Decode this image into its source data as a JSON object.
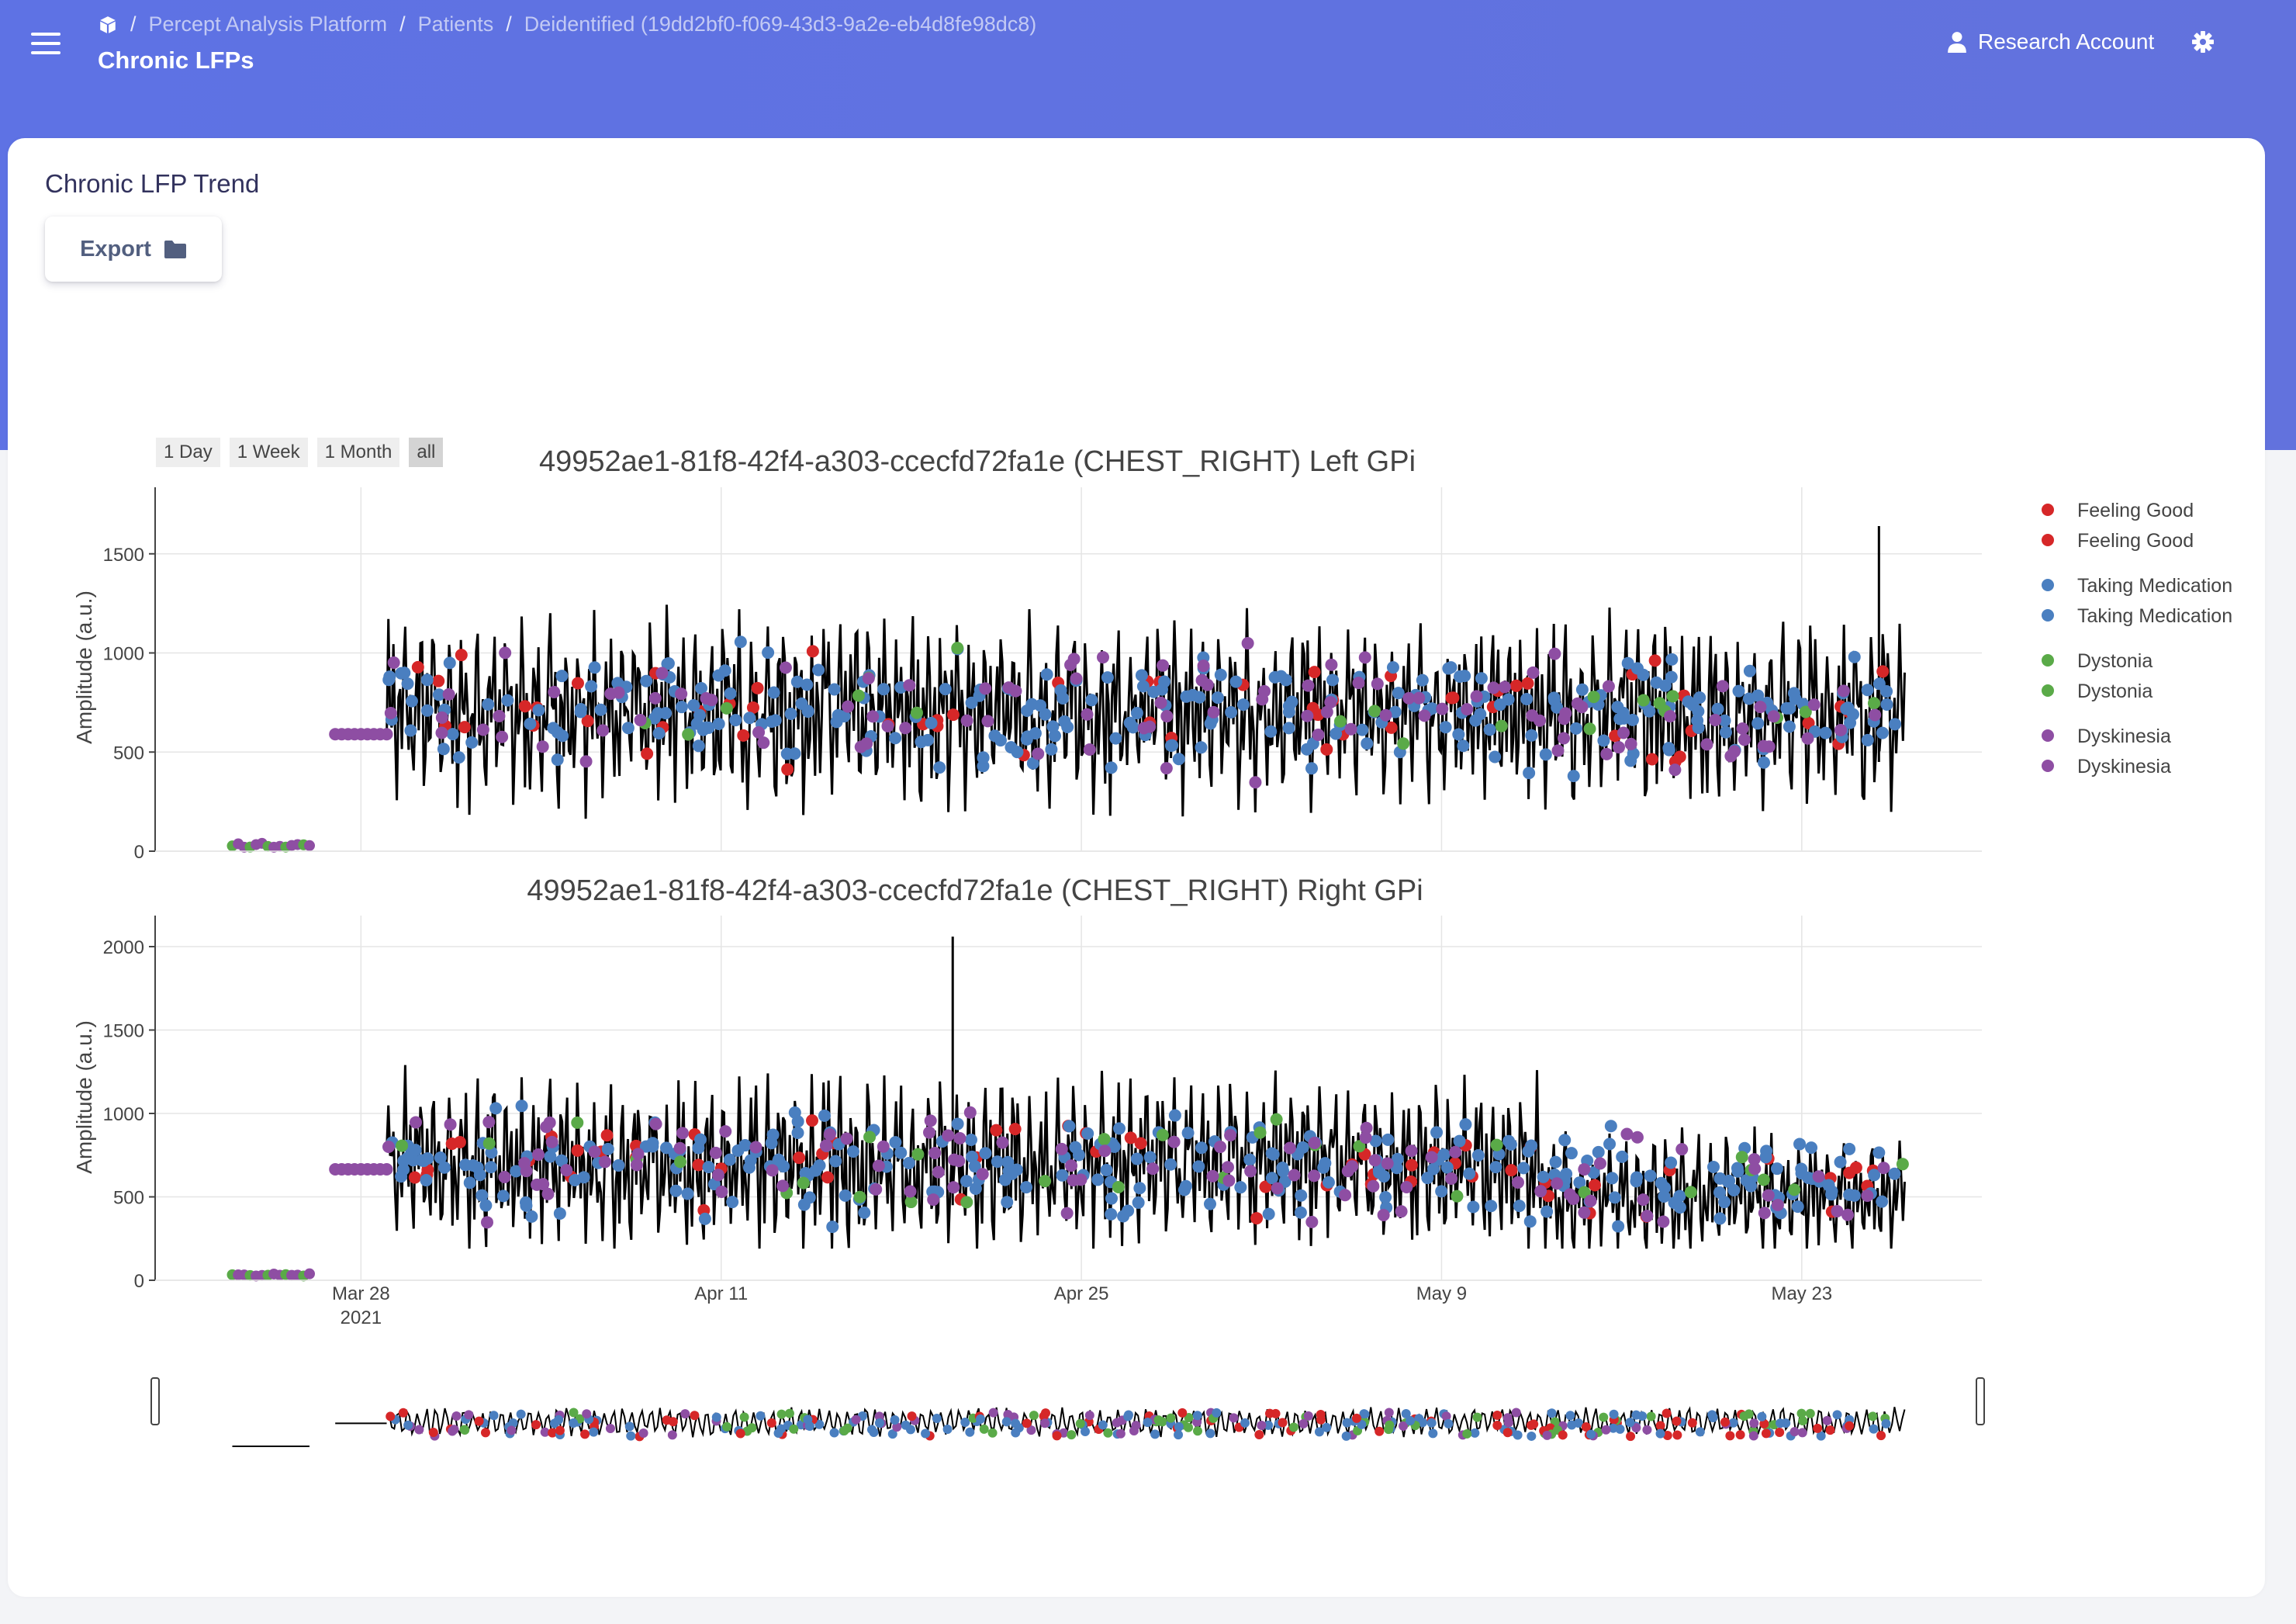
{
  "header": {
    "breadcrumb": [
      "Percept Analysis Platform",
      "Patients",
      "Deidentified (19dd2bf0-f069-43d3-9a2e-eb4d8fe98dc8)"
    ],
    "title": "Chronic LFPs",
    "account_label": "Research Account"
  },
  "card": {
    "title": "Chronic LFP Trend",
    "export_label": "Export"
  },
  "range_selector": {
    "buttons": [
      "1 Day",
      "1 Week",
      "1 Month",
      "all"
    ],
    "active": "all"
  },
  "colors": {
    "header_bg": "#5e72e4",
    "feeling_good": "#d62728",
    "taking_medication": "#4a7fc0",
    "dystonia": "#5aaa48",
    "dyskinesia": "#8e4ea3",
    "trace": "#000000"
  },
  "chart_data": [
    {
      "type": "line",
      "title": "49952ae1-81f8-42f4-a303-ccecfd72fa1e (CHEST_RIGHT) Left GPi",
      "ylabel": "Amplitude (a.u.)",
      "ylim": [
        0,
        1830
      ],
      "yticks": [
        0,
        500,
        1000,
        1500
      ],
      "xlim": [
        "2021-03-20",
        "2021-05-30"
      ],
      "grid": true,
      "legend_position": "right",
      "legend": [
        [
          "Feeling Good",
          "Feeling Good"
        ],
        [
          "Taking Medication",
          "Taking Medication"
        ],
        [
          "Dystonia",
          "Dystonia"
        ],
        [
          "Dyskinesia",
          "Dyskinesia"
        ]
      ],
      "segments": [
        {
          "start": "2021-03-23",
          "end": "2021-03-26",
          "level": 20
        },
        {
          "start": "2021-03-27",
          "end": "2021-03-29",
          "level": 590
        },
        {
          "start": "2021-03-29",
          "end": "2021-05-27",
          "level": 700,
          "low": 200,
          "high": 1200
        }
      ],
      "peak": {
        "x": "2021-05-26",
        "y": 1640
      },
      "events": {
        "Feeling Good": 60,
        "Taking Medication": 280,
        "Dystonia": 20,
        "Dyskinesia": 110
      }
    },
    {
      "type": "line",
      "title": "49952ae1-81f8-42f4-a303-ccecfd72fa1e (CHEST_RIGHT) Right GPi",
      "ylabel": "Amplitude (a.u.)",
      "ylim": [
        0,
        2170
      ],
      "yticks": [
        0,
        500,
        1000,
        1500,
        2000
      ],
      "xlim": [
        "2021-03-20",
        "2021-05-30"
      ],
      "xticks": [
        {
          "date": "2021-03-28",
          "label": "Mar 28",
          "sublabel": "2021"
        },
        {
          "date": "2021-04-11",
          "label": "Apr 11"
        },
        {
          "date": "2021-04-25",
          "label": "Apr 25"
        },
        {
          "date": "2021-05-09",
          "label": "May 9"
        },
        {
          "date": "2021-05-23",
          "label": "May 23"
        }
      ],
      "grid": true,
      "segments": [
        {
          "start": "2021-03-23",
          "end": "2021-03-26",
          "level": 20
        },
        {
          "start": "2021-03-27",
          "end": "2021-03-29",
          "level": 665
        },
        {
          "start": "2021-03-29",
          "end": "2021-05-27",
          "level": 700,
          "low": 250,
          "high": 1400
        }
      ],
      "peak": {
        "x": "2021-04-20",
        "y": 2060
      },
      "events": {
        "Feeling Good": 60,
        "Taking Medication": 280,
        "Dystonia": 30,
        "Dyskinesia": 110
      }
    }
  ]
}
